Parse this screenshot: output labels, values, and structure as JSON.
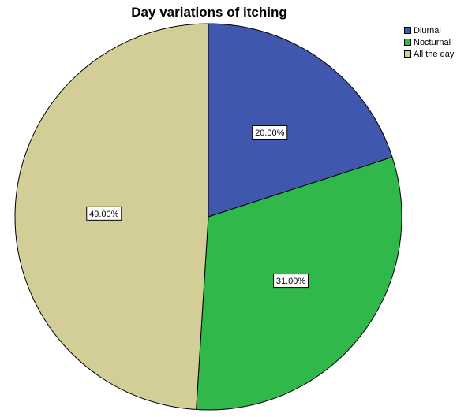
{
  "chart_data": {
    "type": "pie",
    "title": "Day variations of itching",
    "slices": [
      {
        "label": "Diurnal",
        "value": 20.0,
        "display": "20.00%",
        "color": "#3f57ad"
      },
      {
        "label": "Nocturnal",
        "value": 31.0,
        "display": "31.00%",
        "color": "#30b84b"
      },
      {
        "label": "All the day",
        "value": 49.0,
        "display": "49.00%",
        "color": "#d3cd98"
      }
    ],
    "legend_position": "top-right",
    "start_angle": "12 o'clock",
    "direction": "clockwise"
  }
}
